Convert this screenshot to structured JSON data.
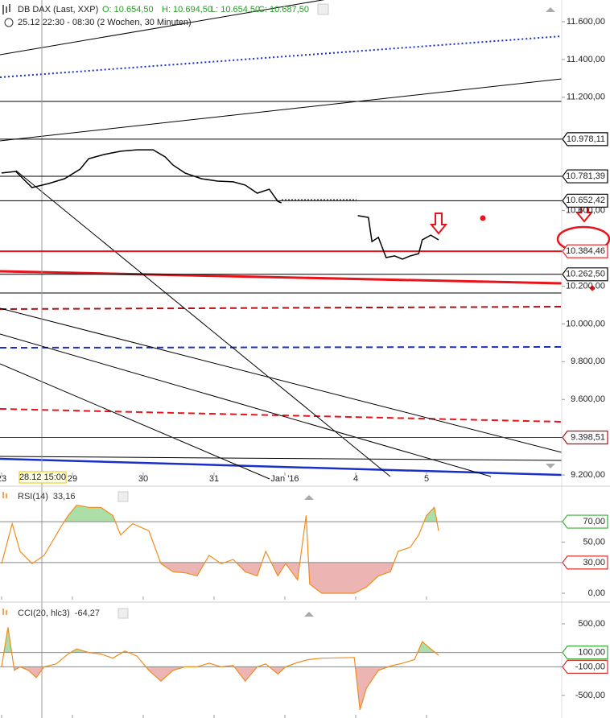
{
  "header": {
    "symbol": "DB DAX (Last, XXP)",
    "open": "O: 10.654,50",
    "high": "H: 10.694,50",
    "low": "L: 10.654,50",
    "close": "C: 10.687,50",
    "range": "25.12 22:30 - 08:30 (2 Wochen, 30 Minuten)"
  },
  "chart_data": [
    {
      "type": "line",
      "name": "price",
      "color": "#000000",
      "crosshair_label": "28.12 15:00",
      "x": [
        0,
        0.2,
        0.43,
        0.66,
        0.89,
        1.11,
        1.23,
        1.45,
        1.68,
        1.91,
        2.14,
        2.31,
        2.42,
        2.59,
        2.82,
        3.05,
        3.27,
        3.44,
        3.61,
        3.78,
        3.9,
        3.95,
        4.5,
        5.03,
        5.18,
        5.23,
        5.32,
        5.43,
        5.55,
        5.66,
        5.77,
        5.89,
        5.94,
        6.06,
        6.17
      ],
      "values": [
        10799,
        10807,
        10722,
        10743,
        10769,
        10820,
        10875,
        10897,
        10914,
        10922,
        10922,
        10884,
        10841,
        10799,
        10769,
        10756,
        10752,
        10735,
        10692,
        10713,
        10649,
        10641,
        null,
        10573,
        10564,
        10436,
        10458,
        10351,
        10360,
        10343,
        10360,
        10372,
        10445,
        10470,
        10445
      ],
      "xlim": [
        0,
        7.9
      ],
      "xticks": [
        {
          "value": 0,
          "label": "23"
        },
        {
          "value": 1,
          "label": "29"
        },
        {
          "value": 2,
          "label": "30"
        },
        {
          "value": 3,
          "label": "31"
        },
        {
          "value": 4,
          "label": "Jan '16"
        },
        {
          "value": 5,
          "label": "4"
        },
        {
          "value": 6,
          "label": "5"
        }
      ],
      "ylim": [
        9145,
        11715
      ],
      "yticks": [
        {
          "value": 11600,
          "label": "11.600,00"
        },
        {
          "value": 11400,
          "label": "11.400,00"
        },
        {
          "value": 11200,
          "label": "11.200,00"
        },
        {
          "value": 10600,
          "label": "10.600,00"
        },
        {
          "value": 10200,
          "label": "10.200,00"
        },
        {
          "value": 10000,
          "label": "10.000,00"
        },
        {
          "value": 9800,
          "label": "9.800,00"
        },
        {
          "value": 9600,
          "label": "9.600,00"
        },
        {
          "value": 9200,
          "label": "9.200,00"
        }
      ],
      "levels": [
        {
          "value": 10978.11,
          "label": "10.978,11",
          "color": "#000000"
        },
        {
          "value": 10781.39,
          "label": "10.781,39",
          "color": "#000000"
        },
        {
          "value": 10652.42,
          "label": "10.652,42",
          "color": "#000000"
        },
        {
          "value": 10384.46,
          "label": "10.384,46",
          "color": "#e8141b"
        },
        {
          "value": 10262.5,
          "label": "10.262,50",
          "color": "#000000"
        },
        {
          "value": 9398.51,
          "label": "9.398,51",
          "color": "#b01010"
        }
      ]
    },
    {
      "type": "line",
      "name": "RSI(14)",
      "value_label": "33,16",
      "color": "#f08c1e",
      "x": [
        0,
        0.15,
        0.26,
        0.43,
        0.6,
        0.83,
        0.94,
        1.06,
        1.23,
        1.4,
        1.57,
        1.68,
        1.85,
        2.08,
        2.25,
        2.42,
        2.59,
        2.76,
        2.93,
        3.1,
        3.27,
        3.44,
        3.61,
        3.73,
        3.9,
        4.01,
        4.18,
        4.3,
        4.35,
        4.52,
        4.98,
        5.15,
        5.32,
        5.49,
        5.6,
        5.77,
        5.89,
        6,
        6.11,
        6.17
      ],
      "values": [
        29,
        68,
        41,
        29,
        37,
        64,
        76,
        86,
        84,
        84,
        76,
        57,
        68,
        61,
        29,
        21,
        20,
        17,
        37,
        29,
        33,
        21,
        17,
        41,
        17,
        29,
        13,
        76,
        9,
        0,
        0,
        6,
        17,
        21,
        41,
        45,
        57,
        76,
        84,
        61
      ],
      "xlim": [
        0,
        7.9
      ],
      "ylim": [
        -6.3,
        103.9
      ],
      "yticks": [
        {
          "value": 50,
          "label": "50,00"
        },
        {
          "value": 0,
          "label": "0,00"
        }
      ],
      "levels": [
        {
          "value": 70,
          "label": "70,00",
          "color": "#3aa83a"
        },
        {
          "value": 30,
          "label": "30,00",
          "color": "#d83030"
        }
      ]
    },
    {
      "type": "line",
      "name": "CCI(20, hlc3)",
      "value_label": "-64,27",
      "color": "#f08c1e",
      "x": [
        0,
        0.09,
        0.18,
        0.26,
        0.38,
        0.49,
        0.6,
        0.77,
        0.94,
        1.06,
        1.23,
        1.4,
        1.57,
        1.74,
        1.91,
        2.08,
        2.25,
        2.42,
        2.59,
        2.76,
        2.93,
        3.1,
        3.27,
        3.44,
        3.61,
        3.73,
        3.9,
        4.01,
        4.18,
        4.33,
        4.52,
        4.98,
        5.06,
        5.15,
        5.32,
        5.49,
        5.66,
        5.83,
        5.94,
        6.06,
        6.17
      ],
      "values": [
        -100,
        450,
        -150,
        -100,
        -150,
        -250,
        -100,
        -60,
        80,
        150,
        100,
        80,
        20,
        120,
        50,
        -150,
        -300,
        -150,
        -100,
        -100,
        -50,
        -100,
        -80,
        -300,
        -100,
        -60,
        -200,
        -100,
        -40,
        0,
        20,
        30,
        -700,
        -400,
        -150,
        -90,
        -50,
        0,
        250,
        150,
        60
      ],
      "xlim": [
        0,
        7.9
      ],
      "ylim": [
        -815,
        781
      ],
      "yticks": [
        {
          "value": 500,
          "label": "500,00"
        },
        {
          "value": -500,
          "label": "-500,00"
        }
      ],
      "levels": [
        {
          "value": 100,
          "label": "100,00",
          "color": "#3aa83a"
        },
        {
          "value": -100,
          "label": "-100,00",
          "color": "#d83030"
        }
      ]
    }
  ]
}
